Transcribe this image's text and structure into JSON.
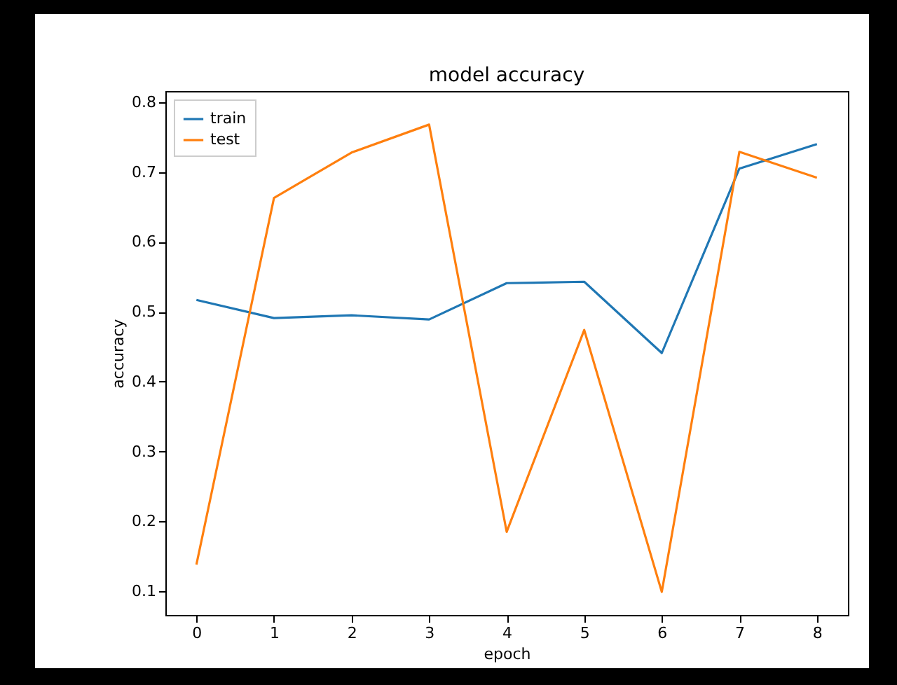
{
  "chart_data": {
    "type": "line",
    "title": "model accuracy",
    "xlabel": "epoch",
    "ylabel": "accuracy",
    "x": [
      0,
      1,
      2,
      3,
      4,
      5,
      6,
      7,
      8
    ],
    "series": [
      {
        "name": "train",
        "color": "#1f77b4",
        "values": [
          0.517,
          0.491,
          0.495,
          0.489,
          0.541,
          0.543,
          0.441,
          0.705,
          0.74
        ]
      },
      {
        "name": "test",
        "color": "#ff7f0e",
        "values": [
          0.138,
          0.663,
          0.728,
          0.768,
          0.185,
          0.474,
          0.099,
          0.729,
          0.692
        ]
      }
    ],
    "xlim": [
      -0.4,
      8.4
    ],
    "ylim": [
      0.066,
      0.816
    ],
    "xticks": [
      0,
      1,
      2,
      3,
      4,
      5,
      6,
      7,
      8
    ],
    "yticks": [
      0.1,
      0.2,
      0.3,
      0.4,
      0.5,
      0.6,
      0.7,
      0.8
    ],
    "legend": "top left",
    "grid": false,
    "marker": "none",
    "line_style": "solid"
  }
}
